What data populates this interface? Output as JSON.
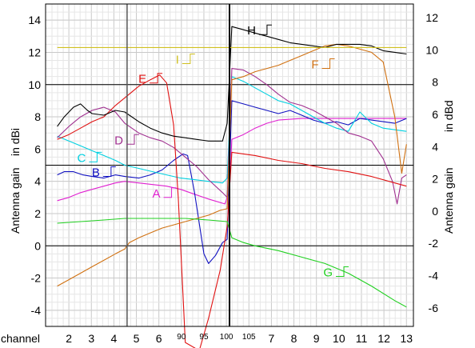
{
  "chart_data": {
    "type": "line",
    "title": "",
    "ylabel_left_prefix": "Antenna gain",
    "ylabel_left_unit": "in dBi",
    "ylabel_right_prefix": "Antenna gain",
    "ylabel_right_unit": "in dBd",
    "x_axis_label": "channel",
    "ylim_dbi": [
      -5,
      15
    ],
    "ylim_dbd": [
      -7.15,
      12.85
    ],
    "grid": true,
    "y_ticks_left": [
      -4,
      -2,
      0,
      2,
      4,
      6,
      8,
      10,
      12,
      14
    ],
    "y_ticks_right": [
      -6,
      -4,
      -2,
      0,
      2,
      4,
      6,
      8,
      10,
      12
    ],
    "x_tick_labels": [
      {
        "label": "2",
        "small": false
      },
      {
        "label": "3",
        "small": false
      },
      {
        "label": "4",
        "small": false
      },
      {
        "label": "5",
        "small": false
      },
      {
        "label": "6",
        "small": false
      },
      {
        "label": "90",
        "small": true
      },
      {
        "label": "95",
        "small": true
      },
      {
        "label": "100",
        "small": true
      },
      {
        "label": "105",
        "small": true
      },
      {
        "label": "7",
        "small": false
      },
      {
        "label": "8",
        "small": false
      },
      {
        "label": "9",
        "small": false
      },
      {
        "label": "10",
        "small": false
      },
      {
        "label": "11",
        "small": false
      },
      {
        "label": "12",
        "small": false
      },
      {
        "label": "13",
        "small": false
      }
    ],
    "band_separators": [
      "4.5 / 90",
      "105 / 7"
    ],
    "series": [
      {
        "name": "A",
        "color": "#e020d0",
        "values": [
          [
            1.5,
            2.8
          ],
          [
            2.0,
            3.0
          ],
          [
            2.5,
            3.3
          ],
          [
            3.0,
            3.5
          ],
          [
            3.5,
            3.7
          ],
          [
            4.0,
            3.9
          ],
          [
            4.4,
            4.0
          ],
          [
            5.0,
            3.9
          ],
          [
            5.6,
            3.8
          ],
          [
            6.2,
            3.7
          ],
          [
            6.8,
            3.5
          ],
          [
            7.4,
            3.2
          ],
          [
            8.0,
            2.9
          ],
          [
            8.7,
            2.6
          ],
          [
            8.9,
            3.4
          ],
          [
            9.0,
            6.6
          ],
          [
            9.5,
            6.9
          ],
          [
            10.0,
            7.3
          ],
          [
            10.5,
            7.6
          ],
          [
            11.0,
            7.8
          ],
          [
            12.0,
            7.9
          ],
          [
            13.0,
            7.9
          ],
          [
            14.0,
            7.9
          ],
          [
            15.0,
            7.9
          ],
          [
            16.0,
            7.9
          ],
          [
            16.5,
            7.9
          ]
        ]
      },
      {
        "name": "B",
        "color": "#1010c0",
        "values": [
          [
            1.5,
            4.4
          ],
          [
            1.8,
            4.6
          ],
          [
            2.2,
            4.6
          ],
          [
            2.6,
            4.4
          ],
          [
            3.0,
            4.3
          ],
          [
            3.5,
            4.2
          ],
          [
            4.0,
            4.4
          ],
          [
            4.4,
            4.3
          ],
          [
            5.0,
            4.2
          ],
          [
            5.5,
            4.4
          ],
          [
            6.0,
            4.7
          ],
          [
            6.5,
            5.3
          ],
          [
            6.9,
            5.7
          ],
          [
            7.1,
            5.6
          ],
          [
            7.4,
            3.3
          ],
          [
            7.8,
            -0.5
          ],
          [
            8.0,
            -1.1
          ],
          [
            8.3,
            -0.6
          ],
          [
            8.6,
            0.2
          ],
          [
            8.8,
            0.4
          ],
          [
            9.0,
            9.0
          ],
          [
            9.5,
            8.8
          ],
          [
            10.0,
            8.6
          ],
          [
            10.5,
            8.4
          ],
          [
            11.0,
            8.2
          ],
          [
            11.5,
            8.4
          ],
          [
            12.0,
            8.1
          ],
          [
            12.5,
            7.8
          ],
          [
            13.0,
            7.6
          ],
          [
            13.5,
            7.7
          ],
          [
            14.0,
            7.5
          ],
          [
            14.5,
            7.9
          ],
          [
            15.0,
            7.8
          ],
          [
            15.5,
            7.7
          ],
          [
            16.0,
            7.6
          ],
          [
            16.5,
            7.9
          ]
        ]
      },
      {
        "name": "C",
        "color": "#00d0e0",
        "values": [
          [
            1.5,
            6.8
          ],
          [
            2.0,
            6.5
          ],
          [
            2.5,
            6.2
          ],
          [
            3.0,
            5.9
          ],
          [
            3.5,
            5.6
          ],
          [
            4.0,
            5.3
          ],
          [
            4.4,
            5.0
          ],
          [
            5.0,
            4.8
          ],
          [
            5.6,
            4.6
          ],
          [
            6.2,
            4.4
          ],
          [
            6.8,
            4.2
          ],
          [
            7.4,
            4.1
          ],
          [
            8.0,
            4.0
          ],
          [
            8.6,
            3.9
          ],
          [
            8.8,
            4.2
          ],
          [
            9.0,
            10.5
          ],
          [
            9.5,
            10.2
          ],
          [
            10.0,
            9.8
          ],
          [
            10.5,
            9.4
          ],
          [
            11.0,
            9.0
          ],
          [
            11.5,
            8.8
          ],
          [
            12.0,
            8.4
          ],
          [
            12.5,
            8.0
          ],
          [
            13.0,
            7.6
          ],
          [
            13.5,
            7.3
          ],
          [
            14.0,
            7.1
          ],
          [
            14.5,
            8.3
          ],
          [
            15.0,
            7.6
          ],
          [
            15.5,
            7.3
          ],
          [
            16.0,
            7.2
          ],
          [
            16.5,
            7.1
          ]
        ]
      },
      {
        "name": "D",
        "color": "#a03090",
        "values": [
          [
            1.5,
            6.7
          ],
          [
            2.0,
            7.4
          ],
          [
            2.5,
            8.0
          ],
          [
            3.0,
            8.4
          ],
          [
            3.5,
            8.6
          ],
          [
            4.0,
            8.3
          ],
          [
            4.4,
            7.6
          ],
          [
            5.0,
            7.0
          ],
          [
            5.5,
            6.7
          ],
          [
            6.0,
            6.5
          ],
          [
            6.5,
            6.1
          ],
          [
            7.0,
            5.5
          ],
          [
            7.5,
            4.9
          ],
          [
            8.0,
            4.1
          ],
          [
            8.6,
            3.3
          ],
          [
            8.8,
            3.0
          ],
          [
            9.0,
            11.0
          ],
          [
            9.5,
            10.9
          ],
          [
            10.0,
            10.5
          ],
          [
            10.5,
            10.0
          ],
          [
            11.0,
            9.4
          ],
          [
            11.5,
            8.9
          ],
          [
            12.0,
            8.7
          ],
          [
            12.5,
            8.4
          ],
          [
            13.0,
            8.0
          ],
          [
            13.5,
            7.6
          ],
          [
            14.0,
            7.0
          ],
          [
            14.5,
            6.8
          ],
          [
            15.0,
            6.5
          ],
          [
            15.5,
            5.4
          ],
          [
            15.9,
            4.0
          ],
          [
            16.1,
            2.6
          ],
          [
            16.3,
            4.2
          ],
          [
            16.5,
            4.4
          ]
        ]
      },
      {
        "name": "E",
        "color": "#e01010",
        "values": [
          [
            1.5,
            6.6
          ],
          [
            2.0,
            6.9
          ],
          [
            2.5,
            7.3
          ],
          [
            3.0,
            7.7
          ],
          [
            3.5,
            8.0
          ],
          [
            4.0,
            8.7
          ],
          [
            4.5,
            9.3
          ],
          [
            5.0,
            9.9
          ],
          [
            5.5,
            10.3
          ],
          [
            5.9,
            10.6
          ],
          [
            6.2,
            10.1
          ],
          [
            6.5,
            7.5
          ],
          [
            6.7,
            3.0
          ],
          [
            6.9,
            -3.0
          ],
          [
            7.0,
            -6.0
          ],
          [
            7.6,
            -6.5
          ],
          [
            8.0,
            -4.5
          ],
          [
            8.5,
            -1.5
          ],
          [
            8.8,
            1.2
          ],
          [
            9.0,
            5.8
          ],
          [
            10.0,
            5.6
          ],
          [
            11.0,
            5.3
          ],
          [
            12.0,
            5.1
          ],
          [
            13.0,
            4.8
          ],
          [
            14.0,
            4.6
          ],
          [
            15.0,
            4.3
          ],
          [
            16.0,
            3.9
          ],
          [
            16.5,
            3.7
          ]
        ]
      },
      {
        "name": "F",
        "color": "#d07010",
        "values": [
          [
            1.5,
            -2.5
          ],
          [
            2.0,
            -2.1
          ],
          [
            2.5,
            -1.7
          ],
          [
            3.0,
            -1.3
          ],
          [
            3.5,
            -0.9
          ],
          [
            4.0,
            -0.5
          ],
          [
            4.4,
            -0.2
          ],
          [
            4.6,
            0.2
          ],
          [
            5.0,
            0.5
          ],
          [
            5.5,
            0.8
          ],
          [
            6.0,
            1.1
          ],
          [
            6.5,
            1.3
          ],
          [
            7.0,
            1.5
          ],
          [
            7.5,
            1.7
          ],
          [
            8.0,
            1.9
          ],
          [
            8.5,
            2.2
          ],
          [
            8.8,
            2.3
          ],
          [
            9.0,
            10.3
          ],
          [
            9.5,
            10.5
          ],
          [
            10.0,
            10.8
          ],
          [
            10.5,
            11.0
          ],
          [
            11.0,
            11.2
          ],
          [
            11.5,
            11.5
          ],
          [
            12.0,
            11.8
          ],
          [
            12.5,
            12.1
          ],
          [
            13.0,
            12.4
          ],
          [
            13.5,
            12.5
          ],
          [
            14.0,
            12.4
          ],
          [
            14.5,
            12.2
          ],
          [
            15.0,
            12.0
          ],
          [
            15.5,
            11.4
          ],
          [
            16.0,
            8.0
          ],
          [
            16.3,
            4.5
          ],
          [
            16.5,
            6.3
          ]
        ]
      },
      {
        "name": "G",
        "color": "#20d020",
        "values": [
          [
            1.5,
            1.4
          ],
          [
            2.5,
            1.5
          ],
          [
            3.5,
            1.6
          ],
          [
            4.4,
            1.7
          ],
          [
            5.0,
            1.7
          ],
          [
            6.0,
            1.7
          ],
          [
            7.0,
            1.7
          ],
          [
            8.0,
            1.6
          ],
          [
            8.8,
            1.5
          ],
          [
            9.0,
            0.5
          ],
          [
            9.5,
            0.2
          ],
          [
            10.0,
            0.0
          ],
          [
            11.0,
            -0.3
          ],
          [
            12.0,
            -0.7
          ],
          [
            13.0,
            -1.1
          ],
          [
            14.0,
            -1.7
          ],
          [
            15.0,
            -2.5
          ],
          [
            16.0,
            -3.4
          ],
          [
            16.5,
            -3.8
          ]
        ]
      },
      {
        "name": "H",
        "color": "#000000",
        "values": [
          [
            1.5,
            7.4
          ],
          [
            1.8,
            8.0
          ],
          [
            2.2,
            8.6
          ],
          [
            2.5,
            8.8
          ],
          [
            2.8,
            8.4
          ],
          [
            3.0,
            8.2
          ],
          [
            3.5,
            8.1
          ],
          [
            4.0,
            8.4
          ],
          [
            4.4,
            8.3
          ],
          [
            5.0,
            7.7
          ],
          [
            5.5,
            7.3
          ],
          [
            6.0,
            7.0
          ],
          [
            6.5,
            6.8
          ],
          [
            7.0,
            6.7
          ],
          [
            7.5,
            6.6
          ],
          [
            8.0,
            6.5
          ],
          [
            8.6,
            6.5
          ],
          [
            8.8,
            7.6
          ],
          [
            9.0,
            13.6
          ],
          [
            9.5,
            13.4
          ],
          [
            10.0,
            13.2
          ],
          [
            10.5,
            13.0
          ],
          [
            11.0,
            12.8
          ],
          [
            11.5,
            12.6
          ],
          [
            12.0,
            12.5
          ],
          [
            12.5,
            12.4
          ],
          [
            13.0,
            12.3
          ],
          [
            13.5,
            12.5
          ],
          [
            14.0,
            12.5
          ],
          [
            14.5,
            12.5
          ],
          [
            15.0,
            12.4
          ],
          [
            15.5,
            12.1
          ],
          [
            16.0,
            12.0
          ],
          [
            16.5,
            11.9
          ]
        ]
      },
      {
        "name": "I",
        "color": "#d0c020",
        "values": [
          [
            1.5,
            12.3
          ],
          [
            16.5,
            12.3
          ]
        ]
      }
    ],
    "label_positions_data": [
      {
        "name": "A",
        "x": 6.0,
        "y": 3.3
      },
      {
        "name": "B",
        "x": 3.4,
        "y": 4.6
      },
      {
        "name": "C",
        "x": 2.8,
        "y": 5.5
      },
      {
        "name": "D",
        "x": 4.4,
        "y": 6.6
      },
      {
        "name": "E",
        "x": 5.4,
        "y": 10.4
      },
      {
        "name": "F",
        "x": 12.8,
        "y": 11.3
      },
      {
        "name": "G",
        "x": 13.4,
        "y": -1.6
      },
      {
        "name": "H",
        "x": 10.1,
        "y": 13.4
      },
      {
        "name": "I",
        "x": 6.8,
        "y": 11.6
      }
    ]
  }
}
